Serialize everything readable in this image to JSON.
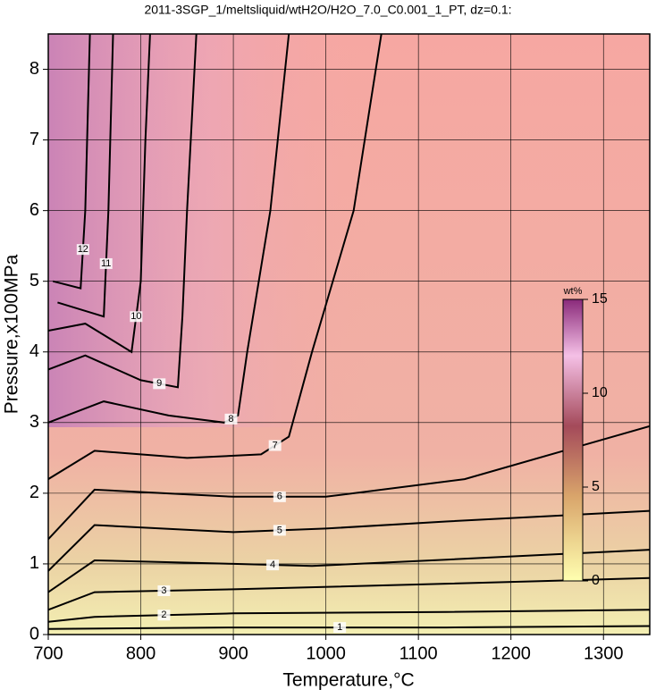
{
  "chart_data": {
    "type": "contour",
    "title": "2011-3SGP_1/meltsliquid/wtH2O/H2O_7.0_C0.001_1_PT, dz=0.1:",
    "x_label": "Temperature,°C",
    "y_label": "Pressure,x100MPa",
    "xlim": [
      700,
      1350
    ],
    "ylim": [
      0,
      8.5
    ],
    "xticks": [
      700,
      800,
      900,
      1000,
      1100,
      1200,
      1300
    ],
    "yticks": [
      0,
      1,
      2,
      3,
      4,
      5,
      6,
      7,
      8
    ],
    "grid": true,
    "contours": [
      {
        "level": 1,
        "x": [
          700,
          900,
          1130,
          1350
        ],
        "y": [
          0.08,
          0.1,
          0.1,
          0.12
        ]
      },
      {
        "level": 2,
        "x": [
          700,
          750,
          900,
          1130,
          1350
        ],
        "y": [
          0.18,
          0.25,
          0.3,
          0.32,
          0.35
        ]
      },
      {
        "level": 3,
        "x": [
          700,
          750,
          900,
          1130,
          1350
        ],
        "y": [
          0.35,
          0.6,
          0.64,
          0.72,
          0.8
        ]
      },
      {
        "level": 4,
        "x": [
          700,
          750,
          900,
          985,
          1130,
          1350
        ],
        "y": [
          0.6,
          1.05,
          1.0,
          0.97,
          1.06,
          1.2
        ]
      },
      {
        "level": 5,
        "x": [
          700,
          750,
          900,
          1000,
          1130,
          1350
        ],
        "y": [
          0.9,
          1.55,
          1.45,
          1.5,
          1.6,
          1.75
        ]
      },
      {
        "level": 6,
        "x": [
          700,
          750,
          900,
          1000,
          1150,
          1350
        ],
        "y": [
          1.35,
          2.05,
          1.95,
          1.95,
          2.2,
          2.95
        ]
      },
      {
        "level": 7,
        "x": [
          700,
          750,
          850,
          930,
          960,
          985,
          1030,
          1060
        ],
        "y": [
          2.2,
          2.6,
          2.5,
          2.55,
          2.8,
          4.0,
          6.0,
          8.5
        ]
      },
      {
        "level": 8,
        "x": [
          700,
          760,
          830,
          890,
          905,
          915,
          940,
          960
        ],
        "y": [
          3.0,
          3.3,
          3.1,
          3.0,
          3.1,
          4.0,
          6.0,
          8.5
        ]
      },
      {
        "level": 9,
        "x": [
          700,
          740,
          800,
          840,
          845,
          850,
          860
        ],
        "y": [
          3.75,
          3.95,
          3.6,
          3.5,
          4.5,
          6.0,
          8.5
        ]
      },
      {
        "level": 10,
        "x": [
          700,
          740,
          790,
          800,
          805,
          810
        ],
        "y": [
          4.3,
          4.4,
          4.0,
          5.0,
          7.0,
          8.5
        ]
      },
      {
        "level": 11,
        "x": [
          710,
          760,
          765,
          770
        ],
        "y": [
          4.7,
          4.5,
          6.0,
          8.5
        ]
      },
      {
        "level": 12,
        "x": [
          705,
          735,
          740,
          745
        ],
        "y": [
          5.0,
          4.9,
          6.0,
          8.5
        ]
      }
    ],
    "colorbar": {
      "label": "wt%",
      "lim": [
        0,
        15
      ],
      "ticks": [
        0,
        5,
        10,
        15
      ]
    }
  }
}
